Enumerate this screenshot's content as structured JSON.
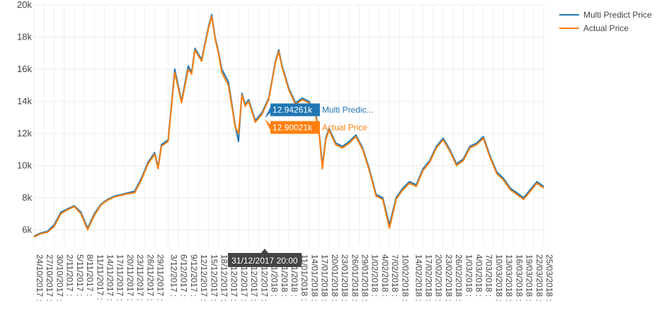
{
  "chart_data": {
    "type": "line",
    "title": "",
    "xlabel": "",
    "ylabel": "",
    "ylim": [
      5000,
      20000
    ],
    "y_ticks": [
      6000,
      8000,
      10000,
      12000,
      14000,
      16000,
      18000,
      20000
    ],
    "y_tick_labels": [
      "6k",
      "8k",
      "10k",
      "12k",
      "14k",
      "16k",
      "18k",
      "20k"
    ],
    "x_range": [
      "24/10/2017",
      "25/03/2018"
    ],
    "x_tick_labels": [
      "24/10/2017 :",
      "27/10/2017 :",
      "30/10/2017 :",
      "2/11/2017 :",
      "5/11/2017 :",
      "8/11/2017 :",
      "11/11/2017 :",
      "14/11/2017 :",
      "17/11/2017 :",
      "20/11/2017 :",
      "23/11/2017 :",
      "26/11/2017 :",
      "29/11/2017 :",
      "3/12/2017 :",
      "6/12/2017 :",
      "9/12/2017 :",
      "12/12/2017 :",
      "15/12/2017 :",
      "18/12/2017 :",
      "21/12/2017 :",
      "24/12/2017 :",
      "27/12/2017 :",
      "30/12/2017 :",
      "2/01/2018 :",
      "5/01/2018 :",
      "8/01/2018 :",
      "11/01/2018 :",
      "14/01/2018 :",
      "17/01/2018 :",
      "20/01/2018 :",
      "23/01/2018 :",
      "26/01/2018 :",
      "29/01/2018 :",
      "1/02/2018 :",
      "4/02/2018 :",
      "7/02/2018 :",
      "10/02/2018 :",
      "14/02/2018 :",
      "17/02/2018 :",
      "20/02/2018 :",
      "23/02/2018 :",
      "26/02/2018 :",
      "1/03/2018 :",
      "4/03/2018 :",
      "7/03/2018 :",
      "10/03/2018 :",
      "13/03/2018 :",
      "16/03/2018 :",
      "19/03/2018 :",
      "22/03/2018 :",
      "25/03/2018 :"
    ],
    "x_tick_days": [
      0,
      3,
      6,
      9,
      12,
      15,
      18,
      21,
      24,
      27,
      30,
      33,
      36,
      40,
      43,
      46,
      49,
      52,
      55,
      58,
      61,
      64,
      67,
      70,
      73,
      76,
      79,
      82,
      85,
      88,
      91,
      94,
      97,
      100,
      103,
      106,
      109,
      113,
      116,
      119,
      122,
      125,
      128,
      131,
      134,
      137,
      140,
      143,
      146,
      149,
      152
    ],
    "x_days": [
      0,
      2,
      4,
      6,
      8,
      10,
      12,
      14,
      16,
      18,
      20,
      22,
      24,
      26,
      28,
      30,
      32,
      34,
      36,
      37,
      38,
      40,
      42,
      44,
      46,
      47,
      48,
      50,
      52,
      53,
      54,
      55,
      56,
      58,
      60,
      61,
      62,
      63,
      64,
      66,
      68,
      70,
      72,
      73,
      74,
      76,
      78,
      80,
      82,
      84,
      85,
      86,
      87,
      88,
      90,
      92,
      94,
      96,
      98,
      100,
      102,
      104,
      106,
      108,
      110,
      112,
      114,
      116,
      118,
      120,
      122,
      124,
      126,
      128,
      130,
      132,
      134,
      136,
      138,
      140,
      142,
      144,
      146,
      148,
      150,
      152
    ],
    "series": [
      {
        "name": "Multi Predict Price",
        "color": "#1f77b4",
        "values": [
          5600,
          5800,
          5900,
          6300,
          7100,
          7300,
          7500,
          7100,
          6100,
          7000,
          7600,
          7900,
          8100,
          8200,
          8300,
          8400,
          9200,
          10200,
          10800,
          9900,
          11300,
          11600,
          16000,
          14000,
          16200,
          15800,
          17300,
          16600,
          18600,
          19400,
          18000,
          17100,
          16000,
          15200,
          12500,
          11500,
          14500,
          13800,
          14100,
          12800,
          13300,
          14200,
          16500,
          17200,
          16200,
          14800,
          13900,
          14200,
          14000,
          13200,
          12200,
          10000,
          11700,
          12300,
          11400,
          11200,
          11500,
          11900,
          11100,
          9800,
          8200,
          8000,
          6300,
          8000,
          8600,
          9000,
          8800,
          9800,
          10300,
          11200,
          11700,
          11000,
          10100,
          10400,
          11200,
          11400,
          11800,
          10600,
          9600,
          9200,
          8600,
          8300,
          8000,
          8500,
          9000,
          8700
        ]
      },
      {
        "name": "Actual Price",
        "color": "#ff7f0e",
        "values": [
          5550,
          5750,
          5850,
          6200,
          7000,
          7250,
          7450,
          7000,
          6000,
          6900,
          7550,
          7850,
          8050,
          8150,
          8250,
          8300,
          9100,
          10100,
          10700,
          9800,
          11200,
          11500,
          15800,
          13900,
          16000,
          15700,
          17200,
          16500,
          18500,
          19300,
          17900,
          17000,
          15800,
          15000,
          12400,
          12000,
          14400,
          13700,
          14000,
          12700,
          13200,
          14100,
          16400,
          17100,
          16100,
          14700,
          13800,
          14100,
          13900,
          13100,
          12100,
          9800,
          11600,
          12200,
          11300,
          11100,
          11400,
          11800,
          11000,
          9700,
          8100,
          7900,
          6100,
          7900,
          8500,
          8900,
          8700,
          9700,
          10200,
          11100,
          11600,
          10900,
          10000,
          10300,
          11100,
          11300,
          11700,
          10500,
          9500,
          9100,
          8500,
          8200,
          7900,
          8400,
          8900,
          8600
        ]
      }
    ],
    "legend_position": "top-right",
    "grid": true,
    "hover": {
      "x_label": "31/12/2017 20:00",
      "x_day": 68.8,
      "points": [
        {
          "series": "Multi Predict Price",
          "value": 12942.61,
          "value_label": "12.94261k",
          "name_label": "Multi Predic...",
          "color": "#1f77b4"
        },
        {
          "series": "Actual Price",
          "value": 12900.21,
          "value_label": "12.90021k",
          "name_label": "Actual Price",
          "color": "#ff7f0e"
        }
      ]
    }
  }
}
